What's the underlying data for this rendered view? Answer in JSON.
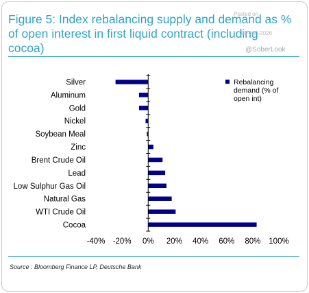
{
  "figure": {
    "title": "Figure 5: Index rebalancing supply and demand as % of open interest in first liquid contract (including cocoa)",
    "source": "Source : Bloomberg Finance LP, Deutsche Bank",
    "watermark": {
      "posted_on": "Posted on",
      "date": "08-Jan-2026",
      "handle": "@SoberLook"
    }
  },
  "colors": {
    "title": "#2fa4c8",
    "bar": "#00008b",
    "axis": "#000000"
  },
  "chart_data": {
    "type": "bar",
    "orientation": "horizontal",
    "categories": [
      "Silver",
      "Aluminum",
      "Gold",
      "Nickel",
      "Soybean Meal",
      "Zinc",
      "Brent Crude Oil",
      "Lead",
      "Low Sulphur Gas Oil",
      "Natural Gas",
      "WTI Crude Oil",
      "Cocoa"
    ],
    "series": [
      {
        "name": "Rebalancing demand (% of open int)",
        "values": [
          -25,
          -7,
          -7,
          -2,
          -1,
          4,
          11,
          13,
          14,
          18,
          21,
          83
        ]
      }
    ],
    "xlim": [
      -40,
      100
    ],
    "xticks": [
      -40,
      -20,
      0,
      20,
      40,
      60,
      80,
      100
    ],
    "xtick_labels": [
      "-40%",
      "-20%",
      "0%",
      "20%",
      "40%",
      "60%",
      "80%",
      "100%"
    ],
    "legend_lines": [
      "Rebalancing",
      "demand (% of",
      "open int)"
    ],
    "legend_position": "top-right",
    "grid": false
  }
}
